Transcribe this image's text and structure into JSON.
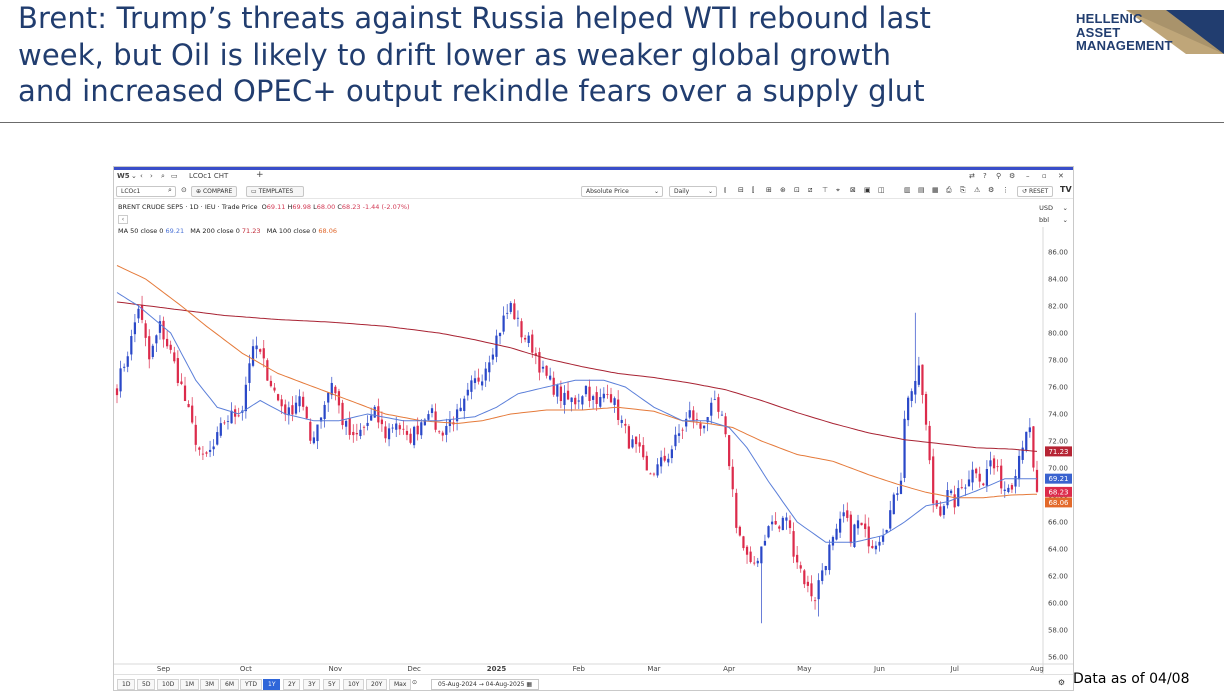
{
  "headline": [
    "Brent: Trump’s threats against Russia helped WTI rebound last",
    "week, but Oil is likely to drift lower as weaker global growth",
    "and increased OPEC+ output rekindle fears over a supply glut"
  ],
  "logo": {
    "lines": [
      "HELLENIC",
      "ASSET",
      "MANAGEMENT"
    ],
    "accent_color": "#213d6f"
  },
  "footnote": "Data as of 04/08",
  "toolbar": {
    "workspace": "W5",
    "tab_name": "LCOc1 CHT",
    "add_tab": "+",
    "symbol": "LCOc1",
    "compare": "COMPARE",
    "templates": "TEMPLATES",
    "price_type": "Absolute Price",
    "interval": "Daily",
    "reset": "RESET"
  },
  "legend": {
    "instrument": "BRENT CRUDE SEP5",
    "interval": "1D",
    "exchange": "IEU",
    "price_label": "Trade Price",
    "o_label": "O",
    "o": "69.11",
    "h_label": "H",
    "h": "69.98",
    "l_label": "L",
    "l": "68.00",
    "c_label": "C",
    "c": "68.23",
    "change": "-1.44",
    "change_pct": "(-2.07%)",
    "ma50_label": "MA 50 close 0",
    "ma50": "69.21",
    "ma200_label": "MA 200 close 0",
    "ma200": "71.23",
    "ma100_label": "MA 100 close 0",
    "ma100": "68.06",
    "collapse": "‹"
  },
  "units": {
    "currency": "USD",
    "unit": "bbl"
  },
  "range_buttons": [
    "1D",
    "5D",
    "10D",
    "1M",
    "3M",
    "6M",
    "YTD",
    "1Y",
    "2Y",
    "3Y",
    "5Y",
    "10Y",
    "20Y",
    "Max"
  ],
  "active_range": "1Y",
  "date_range": "05-Aug-2024  →  04-Aug-2025",
  "chart_data": {
    "type": "line",
    "chart_style": "candlestick",
    "up_color": "#2a48c8",
    "down_color": "#dc2b4b",
    "ylim": [
      56,
      87
    ],
    "y_ticks": [
      "56.00",
      "58.00",
      "60.00",
      "62.00",
      "64.00",
      "66.00",
      "68.00",
      "70.00",
      "72.00",
      "74.00",
      "76.00",
      "78.00",
      "80.00",
      "82.00",
      "84.00",
      "86.00"
    ],
    "x_ticks": [
      "Sep",
      "Oct",
      "Nov",
      "Dec",
      "2025",
      "Feb",
      "Mar",
      "Apr",
      "May",
      "Jun",
      "Jul",
      "Aug"
    ],
    "x_tick_sessions": [
      13,
      36,
      61,
      83,
      106,
      129,
      150,
      171,
      192,
      213,
      234,
      257
    ],
    "sessions": 258,
    "close_anchors": [
      [
        0,
        76.0
      ],
      [
        4,
        79.5
      ],
      [
        6,
        82.0
      ],
      [
        9,
        78.0
      ],
      [
        12,
        80.5
      ],
      [
        15,
        78.5
      ],
      [
        18,
        76.0
      ],
      [
        21,
        73.0
      ],
      [
        24,
        70.5
      ],
      [
        27,
        71.5
      ],
      [
        30,
        73.5
      ],
      [
        33,
        74.0
      ],
      [
        35,
        74.5
      ],
      [
        37,
        78.0
      ],
      [
        39,
        79.0
      ],
      [
        42,
        77.0
      ],
      [
        45,
        75.0
      ],
      [
        48,
        74.0
      ],
      [
        51,
        75.5
      ],
      [
        54,
        72.0
      ],
      [
        57,
        74.0
      ],
      [
        60,
        76.5
      ],
      [
        63,
        73.5
      ],
      [
        66,
        72.0
      ],
      [
        69,
        73.0
      ],
      [
        72,
        74.0
      ],
      [
        75,
        72.5
      ],
      [
        78,
        73.5
      ],
      [
        81,
        72.0
      ],
      [
        84,
        73.0
      ],
      [
        87,
        74.5
      ],
      [
        90,
        72.5
      ],
      [
        93,
        73.5
      ],
      [
        96,
        74.0
      ],
      [
        99,
        76.0
      ],
      [
        102,
        77.0
      ],
      [
        105,
        79.0
      ],
      [
        108,
        81.0
      ],
      [
        110,
        82.0
      ],
      [
        113,
        80.0
      ],
      [
        116,
        79.0
      ],
      [
        119,
        77.0
      ],
      [
        122,
        76.0
      ],
      [
        125,
        75.0
      ],
      [
        128,
        75.0
      ],
      [
        131,
        76.0
      ],
      [
        134,
        74.5
      ],
      [
        137,
        76.0
      ],
      [
        140,
        74.0
      ],
      [
        143,
        72.0
      ],
      [
        146,
        71.0
      ],
      [
        148,
        69.5
      ],
      [
        151,
        70.0
      ],
      [
        154,
        71.0
      ],
      [
        157,
        72.5
      ],
      [
        160,
        74.0
      ],
      [
        163,
        73.0
      ],
      [
        165,
        74.0
      ],
      [
        167,
        74.5
      ],
      [
        169,
        73.5
      ],
      [
        171,
        70.5
      ],
      [
        173,
        66.0
      ],
      [
        175,
        64.0
      ],
      [
        177,
        62.5
      ],
      [
        179,
        63.5
      ],
      [
        181,
        65.0
      ],
      [
        183,
        66.0
      ],
      [
        185,
        65.5
      ],
      [
        187,
        66.5
      ],
      [
        189,
        64.0
      ],
      [
        191,
        62.5
      ],
      [
        193,
        61.0
      ],
      [
        195,
        60.5
      ],
      [
        197,
        62.5
      ],
      [
        199,
        64.0
      ],
      [
        201,
        65.0
      ],
      [
        203,
        66.5
      ],
      [
        205,
        65.0
      ],
      [
        207,
        66.0
      ],
      [
        209,
        65.0
      ],
      [
        211,
        64.5
      ],
      [
        213,
        65.0
      ],
      [
        215,
        66.0
      ],
      [
        217,
        67.5
      ],
      [
        219,
        69.5
      ],
      [
        220,
        74.0
      ],
      [
        222,
        76.0
      ],
      [
        224,
        77.0
      ],
      [
        225,
        75.5
      ],
      [
        226,
        73.0
      ],
      [
        228,
        67.5
      ],
      [
        230,
        67.0
      ],
      [
        232,
        68.0
      ],
      [
        234,
        67.5
      ],
      [
        236,
        68.5
      ],
      [
        238,
        69.5
      ],
      [
        240,
        70.0
      ],
      [
        242,
        69.0
      ],
      [
        244,
        70.5
      ],
      [
        246,
        69.5
      ],
      [
        248,
        68.5
      ],
      [
        250,
        69.0
      ],
      [
        252,
        71.0
      ],
      [
        254,
        73.0
      ],
      [
        255,
        72.5
      ],
      [
        256,
        69.7
      ],
      [
        257,
        68.23
      ]
    ],
    "spike_highs": [
      [
        223,
        81.5
      ],
      [
        180,
        58.5
      ],
      [
        196,
        59.0
      ]
    ],
    "ma50": [
      [
        0,
        83.0
      ],
      [
        6,
        82.0
      ],
      [
        15,
        80.0
      ],
      [
        22,
        76.5
      ],
      [
        28,
        74.5
      ],
      [
        34,
        74.0
      ],
      [
        40,
        75.0
      ],
      [
        47,
        74.0
      ],
      [
        55,
        73.5
      ],
      [
        62,
        73.5
      ],
      [
        70,
        74.0
      ],
      [
        80,
        73.5
      ],
      [
        90,
        73.5
      ],
      [
        100,
        73.8
      ],
      [
        106,
        74.5
      ],
      [
        112,
        75.5
      ],
      [
        120,
        76.0
      ],
      [
        128,
        76.5
      ],
      [
        136,
        76.5
      ],
      [
        142,
        76.0
      ],
      [
        150,
        74.5
      ],
      [
        158,
        73.5
      ],
      [
        165,
        73.5
      ],
      [
        171,
        73.0
      ],
      [
        176,
        71.5
      ],
      [
        182,
        69.0
      ],
      [
        190,
        66.0
      ],
      [
        198,
        64.5
      ],
      [
        206,
        64.5
      ],
      [
        214,
        65.0
      ],
      [
        220,
        66.0
      ],
      [
        226,
        67.2
      ],
      [
        232,
        67.5
      ],
      [
        240,
        68.3
      ],
      [
        248,
        69.2
      ],
      [
        257,
        69.21
      ]
    ],
    "ma100": [
      [
        0,
        85.0
      ],
      [
        8,
        84.0
      ],
      [
        18,
        82.0
      ],
      [
        25,
        80.5
      ],
      [
        35,
        78.5
      ],
      [
        45,
        77.0
      ],
      [
        55,
        76.0
      ],
      [
        65,
        75.0
      ],
      [
        75,
        74.0
      ],
      [
        85,
        73.5
      ],
      [
        95,
        73.3
      ],
      [
        102,
        73.5
      ],
      [
        110,
        74.0
      ],
      [
        120,
        74.3
      ],
      [
        130,
        74.3
      ],
      [
        140,
        74.5
      ],
      [
        150,
        74.2
      ],
      [
        158,
        73.5
      ],
      [
        165,
        73.3
      ],
      [
        172,
        73.0
      ],
      [
        180,
        72.0
      ],
      [
        190,
        71.0
      ],
      [
        200,
        70.5
      ],
      [
        210,
        69.5
      ],
      [
        218,
        68.8
      ],
      [
        226,
        68.2
      ],
      [
        234,
        67.8
      ],
      [
        242,
        67.8
      ],
      [
        250,
        68.0
      ],
      [
        257,
        68.06
      ]
    ],
    "ma200": [
      [
        0,
        82.3
      ],
      [
        15,
        81.8
      ],
      [
        30,
        81.3
      ],
      [
        45,
        81.0
      ],
      [
        60,
        80.8
      ],
      [
        75,
        80.5
      ],
      [
        90,
        80.0
      ],
      [
        100,
        79.5
      ],
      [
        110,
        78.9
      ],
      [
        120,
        78.1
      ],
      [
        130,
        77.5
      ],
      [
        140,
        77.0
      ],
      [
        150,
        76.7
      ],
      [
        160,
        76.3
      ],
      [
        170,
        75.8
      ],
      [
        180,
        75.0
      ],
      [
        190,
        74.1
      ],
      [
        200,
        73.3
      ],
      [
        210,
        72.6
      ],
      [
        220,
        72.1
      ],
      [
        230,
        71.8
      ],
      [
        240,
        71.5
      ],
      [
        250,
        71.4
      ],
      [
        257,
        71.23
      ]
    ],
    "last_price_labels": [
      {
        "value": 71.23,
        "label": "71.23",
        "color": "#b62434"
      },
      {
        "value": 69.21,
        "label": "69.21",
        "color": "#3a63cf"
      },
      {
        "value": 68.23,
        "label": "68.23",
        "color": "#dc2b4b"
      },
      {
        "value": 68.06,
        "label": "68.06",
        "color": "#e3692a"
      }
    ],
    "ma_colors": {
      "ma50": "#5b7fd9",
      "ma100": "#e57a3a",
      "ma200": "#a82232"
    }
  }
}
